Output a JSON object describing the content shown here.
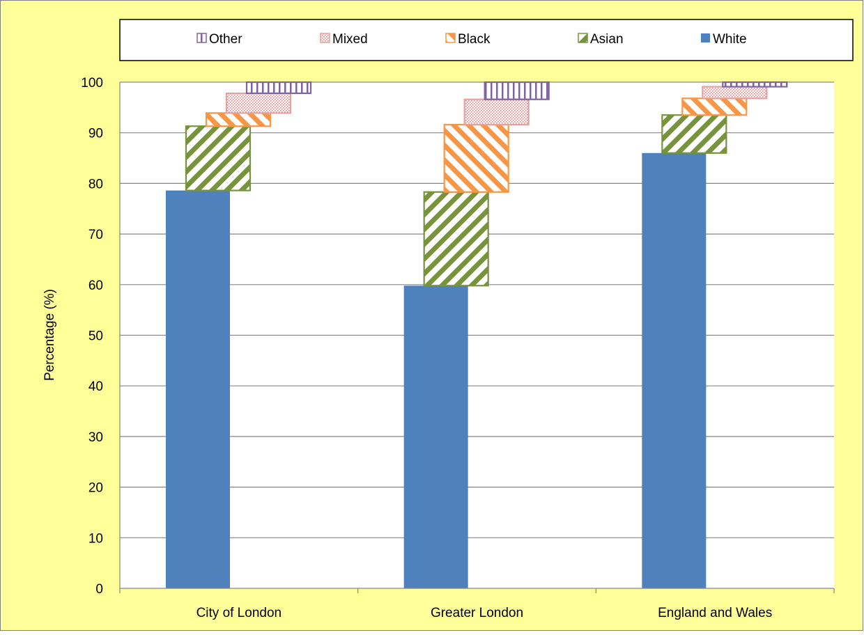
{
  "chart_data": {
    "type": "bar",
    "stacking": "staggered-stacked",
    "title": "",
    "xlabel": "",
    "ylabel": "Percentage (%)",
    "ylim": [
      0,
      100
    ],
    "yticks": [
      0,
      10,
      20,
      30,
      40,
      50,
      60,
      70,
      80,
      90,
      100
    ],
    "grid": true,
    "legend_position": "top",
    "background_color": "#ffff99",
    "plot_background_color": "#ffffff",
    "categories": [
      "City of London",
      "Greater London",
      "England and Wales"
    ],
    "series": [
      {
        "name": "White",
        "values": [
          78.6,
          59.8,
          86.0
        ],
        "color": "#4f81bd",
        "pattern": "solid"
      },
      {
        "name": "Asian",
        "values": [
          12.7,
          18.5,
          7.5
        ],
        "color": "#77933c",
        "pattern": "diagonal-up"
      },
      {
        "name": "Black",
        "values": [
          2.6,
          13.3,
          3.3
        ],
        "color": "#f79646",
        "pattern": "diagonal-down"
      },
      {
        "name": "Mixed",
        "values": [
          3.9,
          5.0,
          2.3
        ],
        "color": "#e6a0a0",
        "pattern": "dots"
      },
      {
        "name": "Other",
        "values": [
          2.2,
          3.4,
          0.9
        ],
        "color": "#8064a2",
        "pattern": "vertical"
      }
    ],
    "legend_order": [
      "Other",
      "Mixed",
      "Black",
      "Asian",
      "White"
    ]
  }
}
